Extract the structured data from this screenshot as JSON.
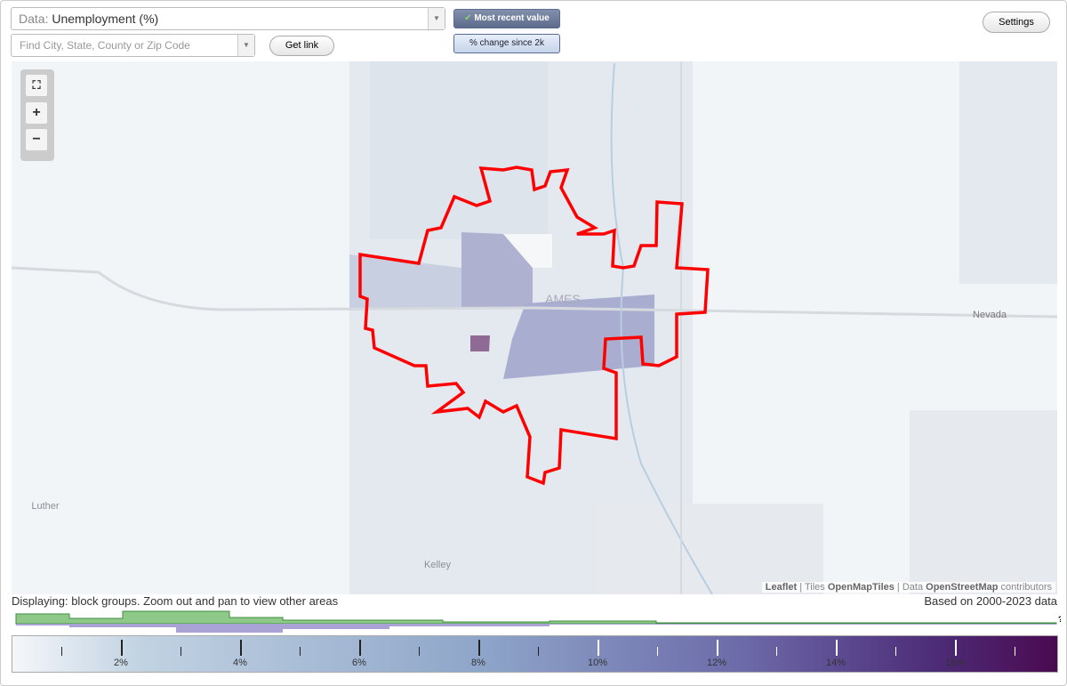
{
  "toolbar": {
    "data_prefix": "Data:",
    "data_value": "Unemployment (%)",
    "search_placeholder": "Find City, State, County or Zip Code",
    "get_link": "Get link",
    "most_recent": "Most recent value",
    "pct_change": "% change since 2k",
    "settings": "Settings"
  },
  "map": {
    "labels": {
      "ames": "AMES",
      "nevada": "Nevada",
      "luther": "Luther",
      "kelley": "Kelley"
    },
    "zoom_in": "+",
    "zoom_out": "−",
    "attribution": {
      "leaflet": "Leaflet",
      "tiles": "Tiles",
      "openmaptiles": "OpenMapTiles",
      "data": "Data",
      "openstreetmap": "OpenStreetMap",
      "contributors": "contributors"
    }
  },
  "footer": {
    "displaying": "Displaying: block groups. Zoom out and pan to view other areas",
    "based_on": "Based on 2000-2023 data",
    "help": "?"
  },
  "legend": {
    "ticks": [
      "2%",
      "4%",
      "6%",
      "8%",
      "10%",
      "12%",
      "14%",
      "16%"
    ]
  }
}
